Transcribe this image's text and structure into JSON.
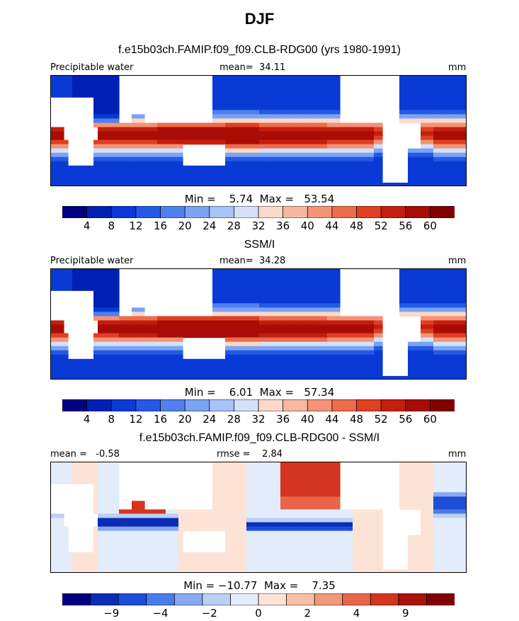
{
  "title": "DJF",
  "colors": {
    "seq": [
      "#00007f",
      "#0020b4",
      "#0a3ad6",
      "#2459e6",
      "#4f80ee",
      "#7ba3f4",
      "#a8c3f7",
      "#d4e1f9",
      "#fbd9c9",
      "#f8b8a0",
      "#f39377",
      "#ec6c4c",
      "#df3f23",
      "#c41e0e",
      "#a90c05",
      "#820000"
    ],
    "div": [
      "#00007f",
      "#0a2cb8",
      "#1c4ed8",
      "#4a7ce8",
      "#86a9f0",
      "#bcd0f6",
      "#e3ecfb",
      "#fde3d6",
      "#f9c0a8",
      "#f3987a",
      "#e8654a",
      "#d43420",
      "#a9120a",
      "#820000"
    ]
  },
  "chart_data": [
    {
      "type": "heatmap",
      "title": "f.e15b03ch.FAMIP.f09_f09.CLB-RDG00 (yrs 1980-1991)",
      "left_label": "Precipitable water",
      "center_label": "mean=  34.11",
      "units": "mm",
      "min_max_text": "Min =    5.74  Max =   53.54",
      "min": 5.74,
      "max": 53.54,
      "colorbar_ticks": [
        "4",
        "8",
        "12",
        "16",
        "20",
        "24",
        "28",
        "32",
        "36",
        "40",
        "44",
        "48",
        "52",
        "56",
        "60"
      ]
    },
    {
      "type": "heatmap",
      "title": "SSM/I",
      "left_label": "Precipitable water",
      "center_label": "mean=  34.28",
      "units": "mm",
      "min_max_text": "Min =    6.01  Max =   57.34",
      "min": 6.01,
      "max": 57.34,
      "colorbar_ticks": [
        "4",
        "8",
        "12",
        "16",
        "20",
        "24",
        "28",
        "32",
        "36",
        "40",
        "44",
        "48",
        "52",
        "56",
        "60"
      ]
    },
    {
      "type": "heatmap",
      "title": "f.e15b03ch.FAMIP.f09_f09.CLB-RDG00 - SSM/I",
      "left_label": "mean =   -0.58",
      "center_label": "rmse =    2.84",
      "units": "mm",
      "min_max_text": "Min = −10.77  Max =    7.35",
      "min": -10.77,
      "max": 7.35,
      "colorbar_ticks": [
        "−9",
        "−4",
        "−2",
        "0",
        "2",
        "4",
        "9"
      ]
    }
  ]
}
